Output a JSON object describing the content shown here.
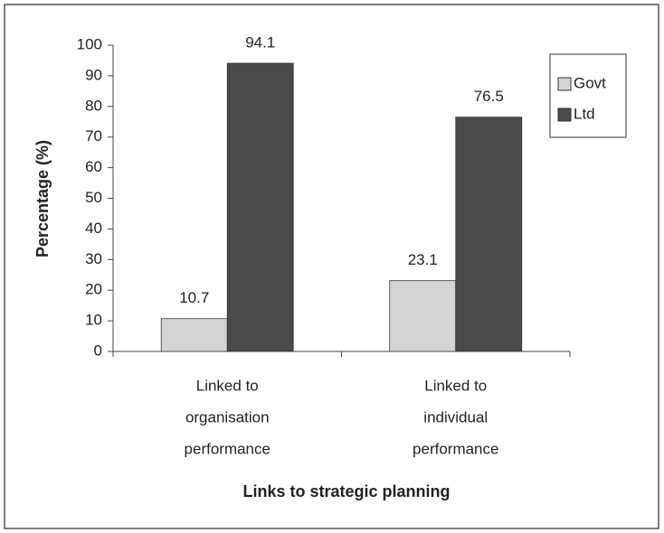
{
  "chart_data": {
    "type": "bar",
    "categories": [
      [
        "Linked to",
        "organisation",
        "performance"
      ],
      [
        "Linked to",
        "individual",
        "performance"
      ]
    ],
    "series": [
      {
        "name": "Govt",
        "color": "#d4d4d4",
        "values": [
          10.7,
          23.1
        ]
      },
      {
        "name": "Ltd",
        "color": "#4a4a4a",
        "values": [
          94.1,
          76.5
        ]
      }
    ],
    "xlabel": "Links to strategic planning",
    "ylabel": "Percentage (%)",
    "ylim": [
      0,
      100
    ],
    "yticks": [
      0,
      10,
      20,
      30,
      40,
      50,
      60,
      70,
      80,
      90,
      100
    ],
    "legend": "right"
  }
}
